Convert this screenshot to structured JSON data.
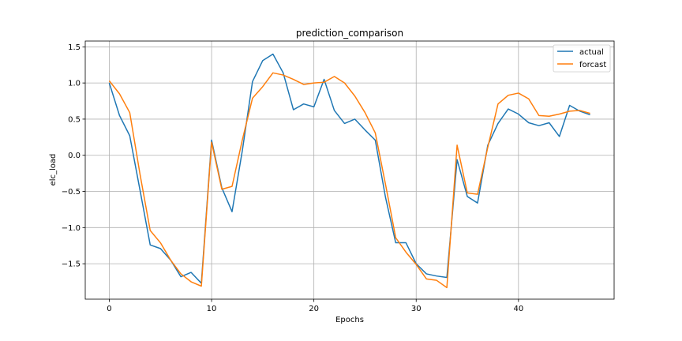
{
  "chart_data": {
    "type": "line",
    "title": "prediction_comparison",
    "xlabel": "Epochs",
    "ylabel": "elc_load",
    "xlim": [
      -2.35,
      49.35
    ],
    "ylim": [
      -1.99,
      1.58
    ],
    "xticks": [
      0,
      10,
      20,
      30,
      40
    ],
    "xtick_labels": [
      "0",
      "10",
      "20",
      "30",
      "40"
    ],
    "yticks": [
      -1.5,
      -1.0,
      -0.5,
      0.0,
      0.5,
      1.0,
      1.5
    ],
    "ytick_labels": [
      "−1.5",
      "−1.0",
      "−0.5",
      "0.0",
      "0.5",
      "1.0",
      "1.5"
    ],
    "grid": true,
    "legend_position": "top-right",
    "series": [
      {
        "name": "actual",
        "color": "#1f77b4",
        "x": [
          0,
          1,
          2,
          3,
          4,
          5,
          6,
          7,
          8,
          9,
          10,
          11,
          12,
          13,
          14,
          15,
          16,
          17,
          18,
          19,
          20,
          21,
          22,
          23,
          24,
          25,
          26,
          27,
          28,
          29,
          30,
          31,
          32,
          33,
          34,
          35,
          36,
          37,
          38,
          39,
          40,
          41,
          42,
          43,
          44,
          45,
          46,
          47
        ],
        "values": [
          1.0,
          0.55,
          0.27,
          -0.48,
          -1.24,
          -1.29,
          -1.45,
          -1.68,
          -1.62,
          -1.77,
          0.21,
          -0.45,
          -0.78,
          0.06,
          1.02,
          1.31,
          1.4,
          1.14,
          0.63,
          0.71,
          0.67,
          1.05,
          0.62,
          0.44,
          0.5,
          0.35,
          0.21,
          -0.58,
          -1.21,
          -1.21,
          -1.5,
          -1.64,
          -1.67,
          -1.69,
          -0.06,
          -0.57,
          -0.66,
          0.14,
          0.44,
          0.64,
          0.57,
          0.45,
          0.41,
          0.45,
          0.26,
          0.69,
          0.61,
          0.56
        ]
      },
      {
        "name": "forcast",
        "color": "#ff7f0e",
        "x": [
          0,
          1,
          2,
          3,
          4,
          5,
          6,
          7,
          8,
          9,
          10,
          11,
          12,
          13,
          14,
          15,
          16,
          17,
          18,
          19,
          20,
          21,
          22,
          23,
          24,
          25,
          26,
          27,
          28,
          29,
          30,
          31,
          32,
          33,
          34,
          35,
          36,
          37,
          38,
          39,
          40,
          41,
          42,
          43,
          44,
          45,
          46,
          47
        ],
        "values": [
          1.03,
          0.85,
          0.59,
          -0.26,
          -1.04,
          -1.21,
          -1.45,
          -1.64,
          -1.75,
          -1.81,
          0.18,
          -0.47,
          -0.43,
          0.21,
          0.79,
          0.95,
          1.14,
          1.11,
          1.05,
          0.98,
          1.0,
          1.01,
          1.09,
          1.0,
          0.82,
          0.59,
          0.31,
          -0.4,
          -1.14,
          -1.34,
          -1.51,
          -1.71,
          -1.73,
          -1.83,
          0.14,
          -0.52,
          -0.54,
          0.11,
          0.71,
          0.83,
          0.86,
          0.78,
          0.55,
          0.54,
          0.57,
          0.61,
          0.62,
          0.58
        ]
      }
    ]
  }
}
